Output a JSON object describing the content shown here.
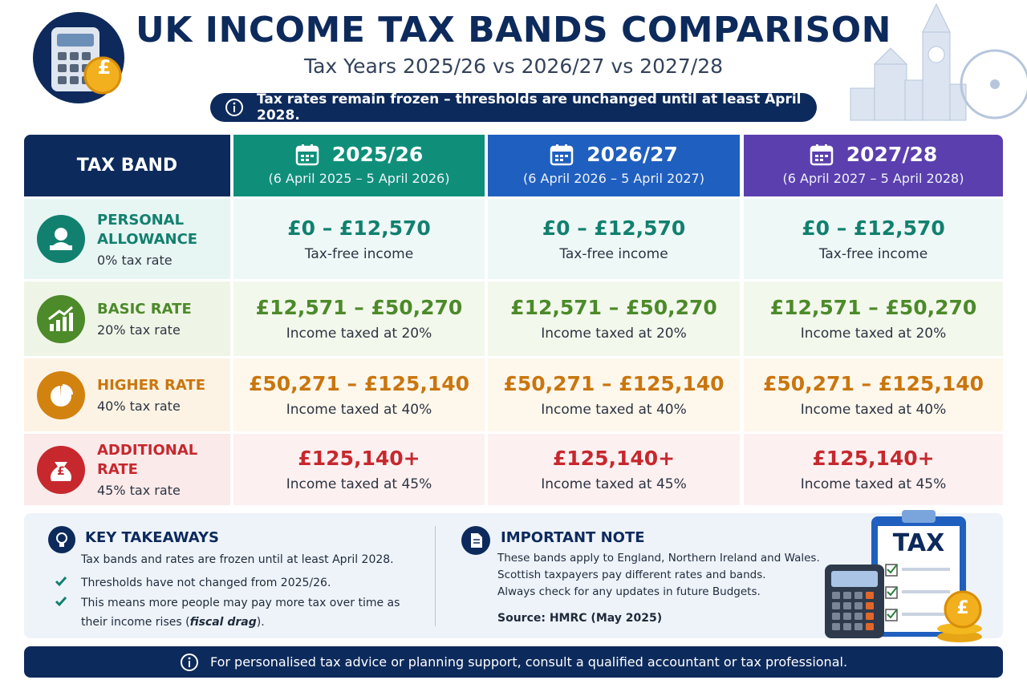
{
  "header": {
    "title": "UK INCOME TAX BANDS COMPARISON",
    "subtitle": "Tax Years 2025/26 vs 2026/27 vs 2027/28",
    "notice": "Tax rates remain frozen – thresholds are unchanged until at least April 2028."
  },
  "table": {
    "band_header": "TAX BAND",
    "columns": [
      {
        "year": "2025/26",
        "dates": "(6 April 2025 – 5 April 2026)"
      },
      {
        "year": "2026/27",
        "dates": "(6 April 2026 – 5 April 2027)"
      },
      {
        "year": "2027/28",
        "dates": "(6 April 2027 – 5 April 2028)"
      }
    ],
    "rows": [
      {
        "name": "PERSONAL ALLOWANCE",
        "rate": "0% tax rate",
        "cells": [
          {
            "range": "£0 – £12,570",
            "note": "Tax-free income"
          },
          {
            "range": "£0 – £12,570",
            "note": "Tax-free income"
          },
          {
            "range": "£0 – £12,570",
            "note": "Tax-free income"
          }
        ]
      },
      {
        "name": "BASIC RATE",
        "rate": "20% tax rate",
        "cells": [
          {
            "range": "£12,571 – £50,270",
            "note": "Income taxed at 20%"
          },
          {
            "range": "£12,571 – £50,270",
            "note": "Income taxed at 20%"
          },
          {
            "range": "£12,571 – £50,270",
            "note": "Income taxed at 20%"
          }
        ]
      },
      {
        "name": "HIGHER RATE",
        "rate": "40% tax rate",
        "cells": [
          {
            "range": "£50,271 – £125,140",
            "note": "Income taxed at 40%"
          },
          {
            "range": "£50,271 – £125,140",
            "note": "Income taxed at 40%"
          },
          {
            "range": "£50,271 – £125,140",
            "note": "Income taxed at 40%"
          }
        ]
      },
      {
        "name": "ADDITIONAL RATE",
        "rate": "45% tax rate",
        "cells": [
          {
            "range": "£125,140+",
            "note": "Income taxed at 45%"
          },
          {
            "range": "£125,140+",
            "note": "Income taxed at 45%"
          },
          {
            "range": "£125,140+",
            "note": "Income taxed at 45%"
          }
        ]
      }
    ]
  },
  "takeaways": {
    "title": "KEY TAKEAWAYS",
    "intro": "Tax bands and rates are frozen until at least April 2028.",
    "items": [
      [
        "Thresholds have not changed from 2025/26."
      ],
      [
        "This means more people may pay more tax over time as their income rises (",
        "fiscal drag",
        ")."
      ]
    ]
  },
  "note": {
    "title": "IMPORTANT NOTE",
    "lines": [
      "These bands apply to England, Northern Ireland and Wales.",
      "Scottish taxpayers pay different rates and bands.",
      "Always check for any updates in future Budgets."
    ],
    "source": "Source: HMRC (May 2025)"
  },
  "illustration": {
    "clipboard_label": "TAX",
    "coin_symbol": "£"
  },
  "footer": "For personalised tax advice or planning support, consult a qualified accountant or tax professional."
}
